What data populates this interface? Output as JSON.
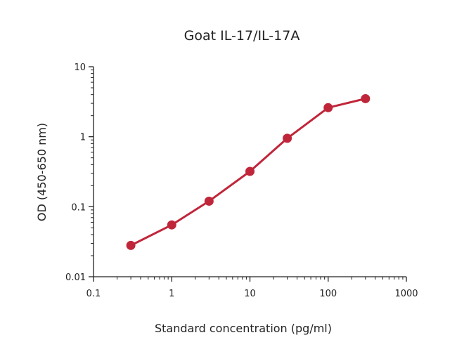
{
  "chart_data": {
    "type": "line",
    "title": "Goat IL-17/IL-17A",
    "xlabel": "Standard concentration (pg/ml)",
    "ylabel": "OD (450-650 nm)",
    "x_scale": "log",
    "y_scale": "log",
    "xlim": [
      0.1,
      1000
    ],
    "ylim": [
      0.01,
      10
    ],
    "x_ticks": [
      {
        "value": 0.1,
        "label": "0.1"
      },
      {
        "value": 1,
        "label": "1"
      },
      {
        "value": 10,
        "label": "10"
      },
      {
        "value": 100,
        "label": "100"
      },
      {
        "value": 1000,
        "label": "1000"
      }
    ],
    "y_ticks": [
      {
        "value": 0.01,
        "label": "0.01"
      },
      {
        "value": 0.1,
        "label": "0.1"
      },
      {
        "value": 1,
        "label": "1"
      },
      {
        "value": 10,
        "label": "10"
      }
    ],
    "grid": false,
    "legend": "none",
    "series": [
      {
        "color": "#c0263a",
        "points": [
          {
            "x": 0.3,
            "y": 0.028
          },
          {
            "x": 1,
            "y": 0.055
          },
          {
            "x": 3,
            "y": 0.12
          },
          {
            "x": 10,
            "y": 0.32
          },
          {
            "x": 30,
            "y": 0.95
          },
          {
            "x": 100,
            "y": 2.6
          },
          {
            "x": 300,
            "y": 3.5
          }
        ]
      }
    ]
  }
}
